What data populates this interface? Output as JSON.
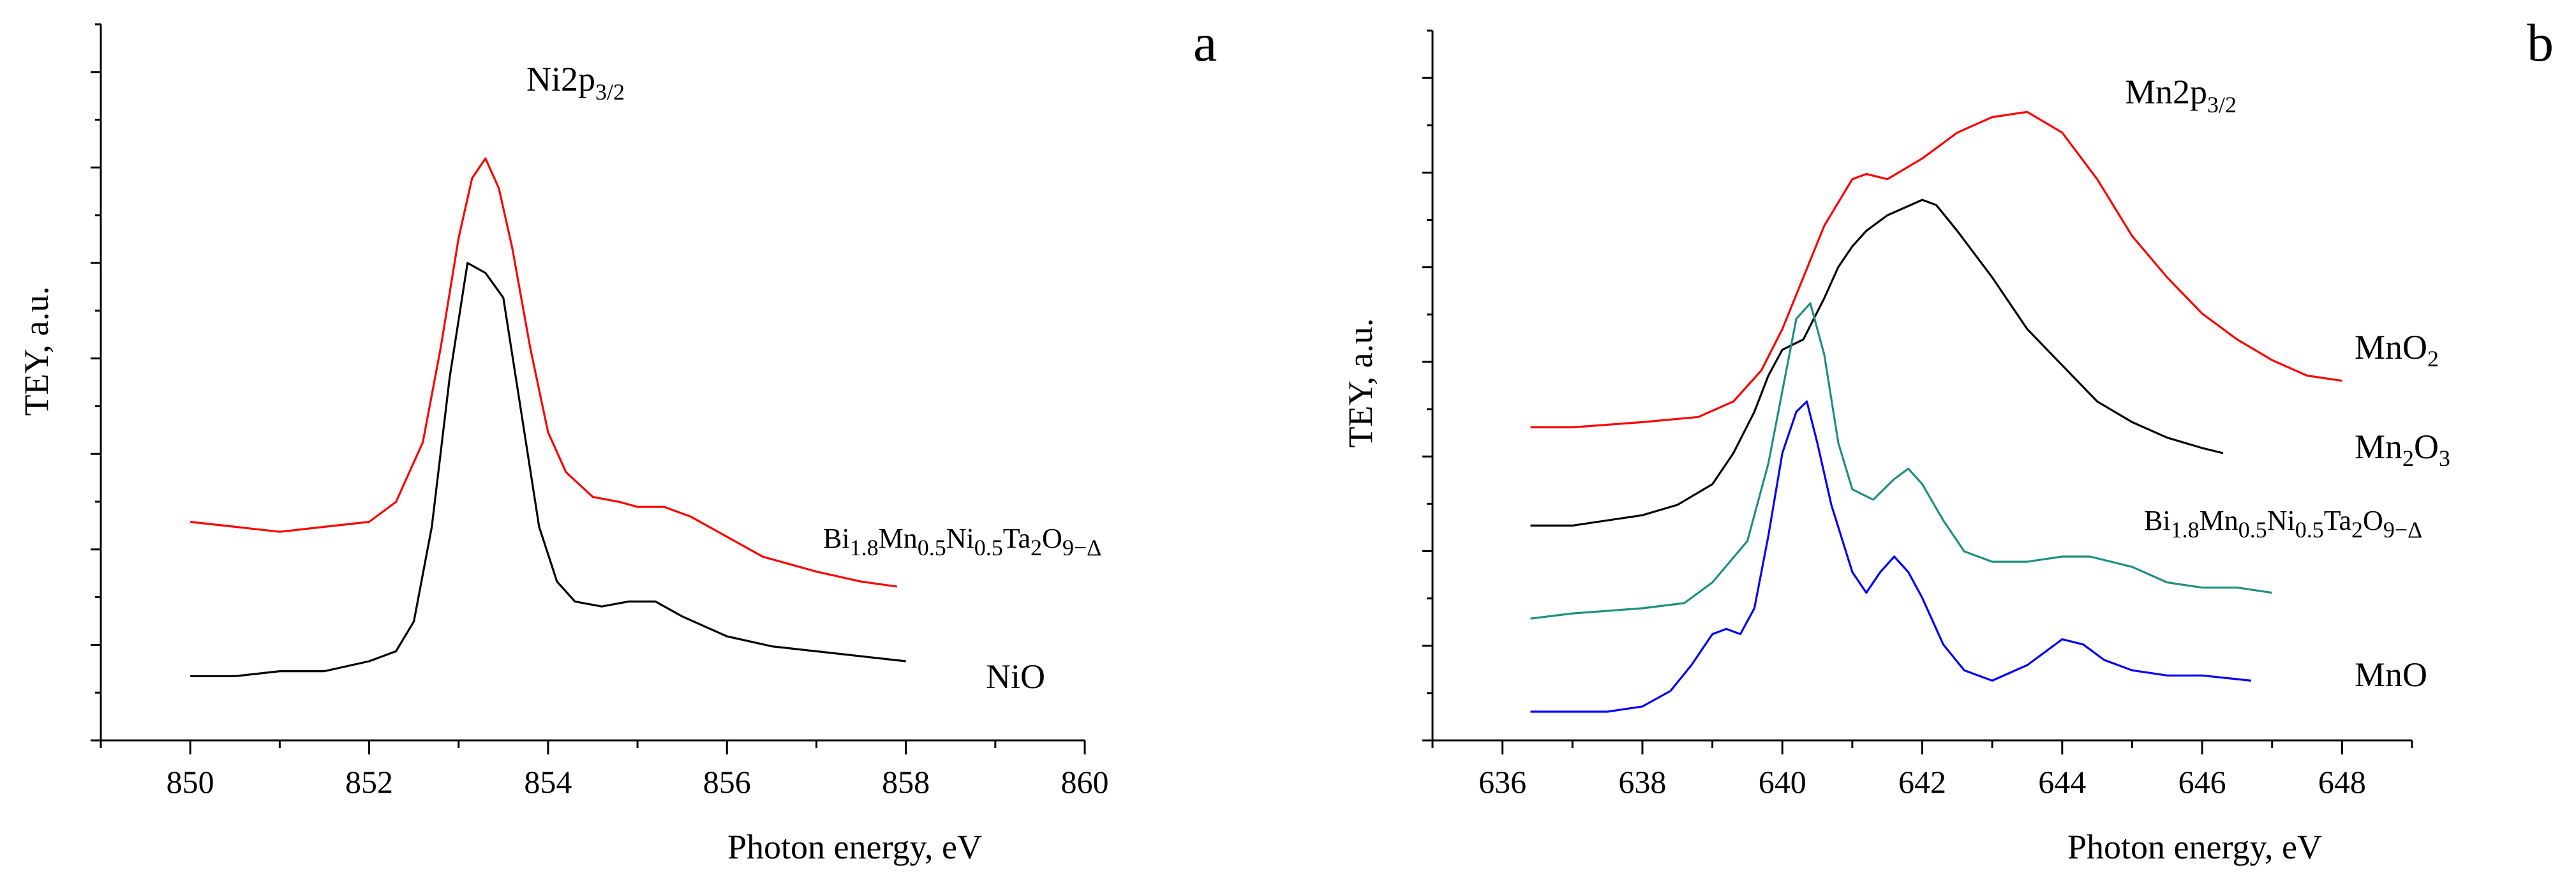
{
  "chart_data": [
    {
      "panel": "a",
      "type": "line",
      "title": "Ni2p3/2",
      "title_parts": {
        "base": "Ni2p",
        "sub": "3/2"
      },
      "xlabel": "Photon energy, eV",
      "ylabel": "TEY, a.u.",
      "xlim": [
        849,
        860
      ],
      "ylim": [
        0,
        1.1
      ],
      "xticks": [
        "850",
        "852",
        "854",
        "856",
        "858",
        "860"
      ],
      "xtick_values": [
        850,
        852,
        854,
        856,
        858,
        860
      ],
      "series": [
        {
          "name": "Bi1.8Mn0.5Ni0.5Ta2O9−Δ",
          "label_parts": [
            [
              "Bi",
              ""
            ],
            [
              "1.8",
              "sub"
            ],
            [
              "Mn",
              ""
            ],
            [
              "0.5",
              "sub"
            ],
            [
              "Ni",
              ""
            ],
            [
              "0.5",
              "sub"
            ],
            [
              "Ta",
              ""
            ],
            [
              "2",
              "sub"
            ],
            [
              "O",
              ""
            ],
            [
              "9−Δ",
              "sub"
            ]
          ],
          "color": "#ff0000",
          "x": [
            850.0,
            850.5,
            851.0,
            851.5,
            852.0,
            852.3,
            852.6,
            852.8,
            853.0,
            853.15,
            853.3,
            853.45,
            853.6,
            853.8,
            854.0,
            854.2,
            854.5,
            854.8,
            855.0,
            855.3,
            855.6,
            856.0,
            856.4,
            857.0,
            857.5,
            857.9
          ],
          "y": [
            0.33,
            0.32,
            0.31,
            0.32,
            0.33,
            0.37,
            0.49,
            0.68,
            0.9,
            1.02,
            1.06,
            1.0,
            0.88,
            0.68,
            0.51,
            0.43,
            0.38,
            0.37,
            0.36,
            0.36,
            0.34,
            0.3,
            0.26,
            0.23,
            0.21,
            0.2
          ]
        },
        {
          "name": "NiO",
          "label_parts": [
            [
              "NiO",
              ""
            ]
          ],
          "color": "#000000",
          "x": [
            850.0,
            850.5,
            851.0,
            851.5,
            852.0,
            852.3,
            852.5,
            852.7,
            852.9,
            853.1,
            853.3,
            853.5,
            853.7,
            853.9,
            854.1,
            854.3,
            854.6,
            854.9,
            855.2,
            855.5,
            856.0,
            856.5,
            857.0,
            857.5,
            858.0
          ],
          "y": [
            0.02,
            0.02,
            0.03,
            0.03,
            0.05,
            0.07,
            0.13,
            0.32,
            0.62,
            0.85,
            0.83,
            0.78,
            0.55,
            0.32,
            0.21,
            0.17,
            0.16,
            0.17,
            0.17,
            0.14,
            0.1,
            0.08,
            0.07,
            0.06,
            0.05
          ]
        }
      ],
      "panel_letter": "a"
    },
    {
      "panel": "b",
      "type": "line",
      "title": "Mn2p3/2",
      "title_parts": {
        "base": "Mn2p",
        "sub": "3/2"
      },
      "xlabel": "Photon energy, eV",
      "ylabel": "TEY, a.u.",
      "xlim": [
        635,
        649
      ],
      "ylim": [
        0,
        1.2
      ],
      "xticks": [
        "636",
        "638",
        "640",
        "642",
        "644",
        "646",
        "648"
      ],
      "xtick_values": [
        636,
        638,
        640,
        642,
        644,
        646,
        648
      ],
      "series": [
        {
          "name": "MnO2",
          "label_parts": [
            [
              "MnO",
              ""
            ],
            [
              "2",
              "sub"
            ]
          ],
          "color": "#ff0000",
          "x": [
            636.4,
            637.0,
            638.0,
            638.8,
            639.3,
            639.7,
            640.0,
            640.3,
            640.6,
            641.0,
            641.2,
            641.5,
            642.0,
            642.5,
            643.0,
            643.5,
            644.0,
            644.5,
            645.0,
            645.5,
            646.0,
            646.5,
            647.0,
            647.5,
            648.0
          ],
          "y": [
            0.55,
            0.55,
            0.56,
            0.57,
            0.6,
            0.66,
            0.74,
            0.84,
            0.94,
            1.03,
            1.04,
            1.03,
            1.07,
            1.12,
            1.15,
            1.16,
            1.12,
            1.03,
            0.92,
            0.84,
            0.77,
            0.72,
            0.68,
            0.65,
            0.64
          ]
        },
        {
          "name": "Mn2O3",
          "label_parts": [
            [
              "Mn",
              ""
            ],
            [
              "2",
              "sub"
            ],
            [
              "O",
              ""
            ],
            [
              "3",
              "sub"
            ]
          ],
          "color": "#000000",
          "x": [
            636.4,
            637.0,
            638.0,
            638.5,
            639.0,
            639.3,
            639.6,
            639.8,
            640.0,
            640.3,
            640.6,
            640.8,
            641.0,
            641.2,
            641.5,
            642.0,
            642.2,
            642.5,
            643.0,
            643.5,
            644.0,
            644.5,
            645.0,
            645.5,
            646.0,
            646.3
          ],
          "y": [
            0.36,
            0.36,
            0.38,
            0.4,
            0.44,
            0.5,
            0.58,
            0.65,
            0.7,
            0.72,
            0.8,
            0.86,
            0.9,
            0.93,
            0.96,
            0.99,
            0.98,
            0.93,
            0.84,
            0.74,
            0.67,
            0.6,
            0.56,
            0.53,
            0.51,
            0.5
          ]
        },
        {
          "name": "Bi1.8Mn0.5Ni0.5Ta2O9−Δ",
          "label_parts": [
            [
              "Bi",
              ""
            ],
            [
              "1.8",
              "sub"
            ],
            [
              "Mn",
              ""
            ],
            [
              "0.5",
              "sub"
            ],
            [
              "Ni",
              ""
            ],
            [
              "0.5",
              "sub"
            ],
            [
              "Ta",
              ""
            ],
            [
              "2",
              "sub"
            ],
            [
              "O",
              ""
            ],
            [
              "9−Δ",
              "sub"
            ]
          ],
          "color": "#1f8f80",
          "x": [
            636.4,
            637.0,
            638.0,
            638.6,
            639.0,
            639.5,
            639.8,
            640.0,
            640.2,
            640.4,
            640.6,
            640.8,
            641.0,
            641.3,
            641.6,
            641.8,
            642.0,
            642.3,
            642.6,
            643.0,
            643.5,
            644.0,
            644.4,
            645.0,
            645.5,
            646.0,
            646.5,
            647.0
          ],
          "y": [
            0.18,
            0.19,
            0.2,
            0.21,
            0.25,
            0.33,
            0.48,
            0.62,
            0.76,
            0.79,
            0.69,
            0.52,
            0.43,
            0.41,
            0.45,
            0.47,
            0.44,
            0.37,
            0.31,
            0.29,
            0.29,
            0.3,
            0.3,
            0.28,
            0.25,
            0.24,
            0.24,
            0.23
          ]
        },
        {
          "name": "MnO",
          "label_parts": [
            [
              "MnO",
              ""
            ]
          ],
          "color": "#0000ff",
          "x": [
            636.4,
            637.0,
            637.5,
            638.0,
            638.4,
            638.7,
            639.0,
            639.2,
            639.4,
            639.6,
            639.8,
            640.0,
            640.2,
            640.35,
            640.5,
            640.7,
            641.0,
            641.2,
            641.4,
            641.6,
            641.8,
            642.0,
            642.3,
            642.6,
            643.0,
            643.5,
            644.0,
            644.3,
            644.6,
            645.0,
            645.5,
            646.0,
            646.7
          ],
          "y": [
            0.0,
            0.0,
            0.0,
            0.01,
            0.04,
            0.09,
            0.15,
            0.16,
            0.15,
            0.2,
            0.34,
            0.5,
            0.58,
            0.6,
            0.52,
            0.4,
            0.27,
            0.23,
            0.27,
            0.3,
            0.27,
            0.22,
            0.13,
            0.08,
            0.06,
            0.09,
            0.14,
            0.13,
            0.1,
            0.08,
            0.07,
            0.07,
            0.06
          ]
        }
      ],
      "panel_letter": "b"
    }
  ]
}
